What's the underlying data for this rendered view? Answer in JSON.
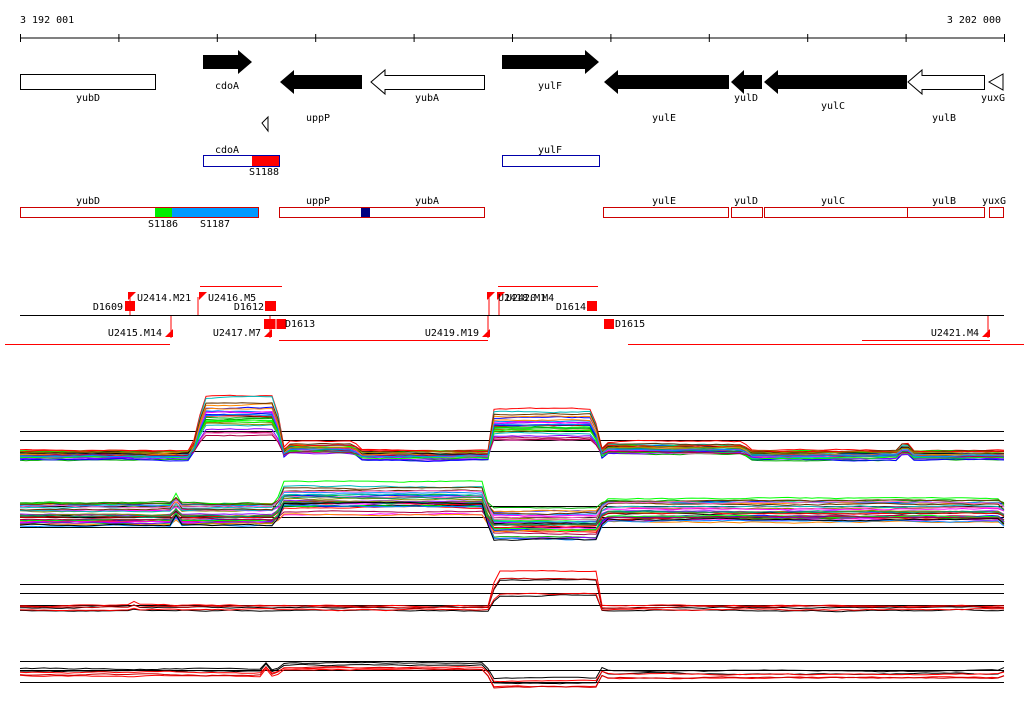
{
  "ruler": {
    "start_label": "3 192 001",
    "end_label": "3 202 000"
  },
  "genes": [
    {
      "name": "yubD",
      "strand": "none",
      "fill": "white"
    },
    {
      "name": "cdoA",
      "strand": "+",
      "fill": "black"
    },
    {
      "name": "uppP",
      "strand": "-",
      "fill": "black"
    },
    {
      "name": "yubA",
      "strand": "-",
      "fill": "white"
    },
    {
      "name": "yulF",
      "strand": "+",
      "fill": "black"
    },
    {
      "name": "yulE",
      "strand": "-",
      "fill": "black"
    },
    {
      "name": "yulD",
      "strand": "-",
      "fill": "black"
    },
    {
      "name": "yulC",
      "strand": "-",
      "fill": "black"
    },
    {
      "name": "yulB",
      "strand": "-",
      "fill": "white"
    },
    {
      "name": "yuxG",
      "strand": "-",
      "fill": "white"
    }
  ],
  "upper_boxes": [
    {
      "name": "cdoA",
      "outline": "#0000aa"
    },
    {
      "name": "yulF",
      "outline": "#0000aa"
    }
  ],
  "upper_segments": [
    {
      "label": "S1188",
      "color": "#ff0000"
    }
  ],
  "lower_boxes": [
    {
      "name": "yubD"
    },
    {
      "name": "uppP"
    },
    {
      "name": "yubA"
    },
    {
      "name": "yulE"
    },
    {
      "name": "yulD"
    },
    {
      "name": "yulC"
    },
    {
      "name": "yulB"
    },
    {
      "name": "yuxG"
    }
  ],
  "lower_segments": [
    {
      "label": "S1186",
      "color": "#00ee00"
    },
    {
      "label": "S1187",
      "color": "#0099ff"
    },
    {
      "label": "",
      "color": "#000080"
    }
  ],
  "features": [
    {
      "label": "D1609"
    },
    {
      "label": "U2414.M21"
    },
    {
      "label": "U2416.M5"
    },
    {
      "label": "D1612"
    },
    {
      "label": "D1613"
    },
    {
      "label": "U2415.M14"
    },
    {
      "label": "U2417.M7"
    },
    {
      "label": "U2419.M19"
    },
    {
      "label": "U2418.M1"
    },
    {
      "label": "U2420.M4"
    },
    {
      "label": "D1614"
    },
    {
      "label": "D1615"
    },
    {
      "label": "U2421.M4"
    }
  ],
  "colors": {
    "arrow": "#000000",
    "feature": "#ff0000",
    "box_outline": "#cc0000",
    "box_blue": "#0000aa"
  },
  "expression_panels": [
    {
      "name": "panel-1",
      "trace_style": "multicolor"
    },
    {
      "name": "panel-2",
      "trace_style": "multicolor"
    },
    {
      "name": "panel-3",
      "trace_style": "red-black"
    },
    {
      "name": "panel-4",
      "trace_style": "red-black"
    }
  ]
}
